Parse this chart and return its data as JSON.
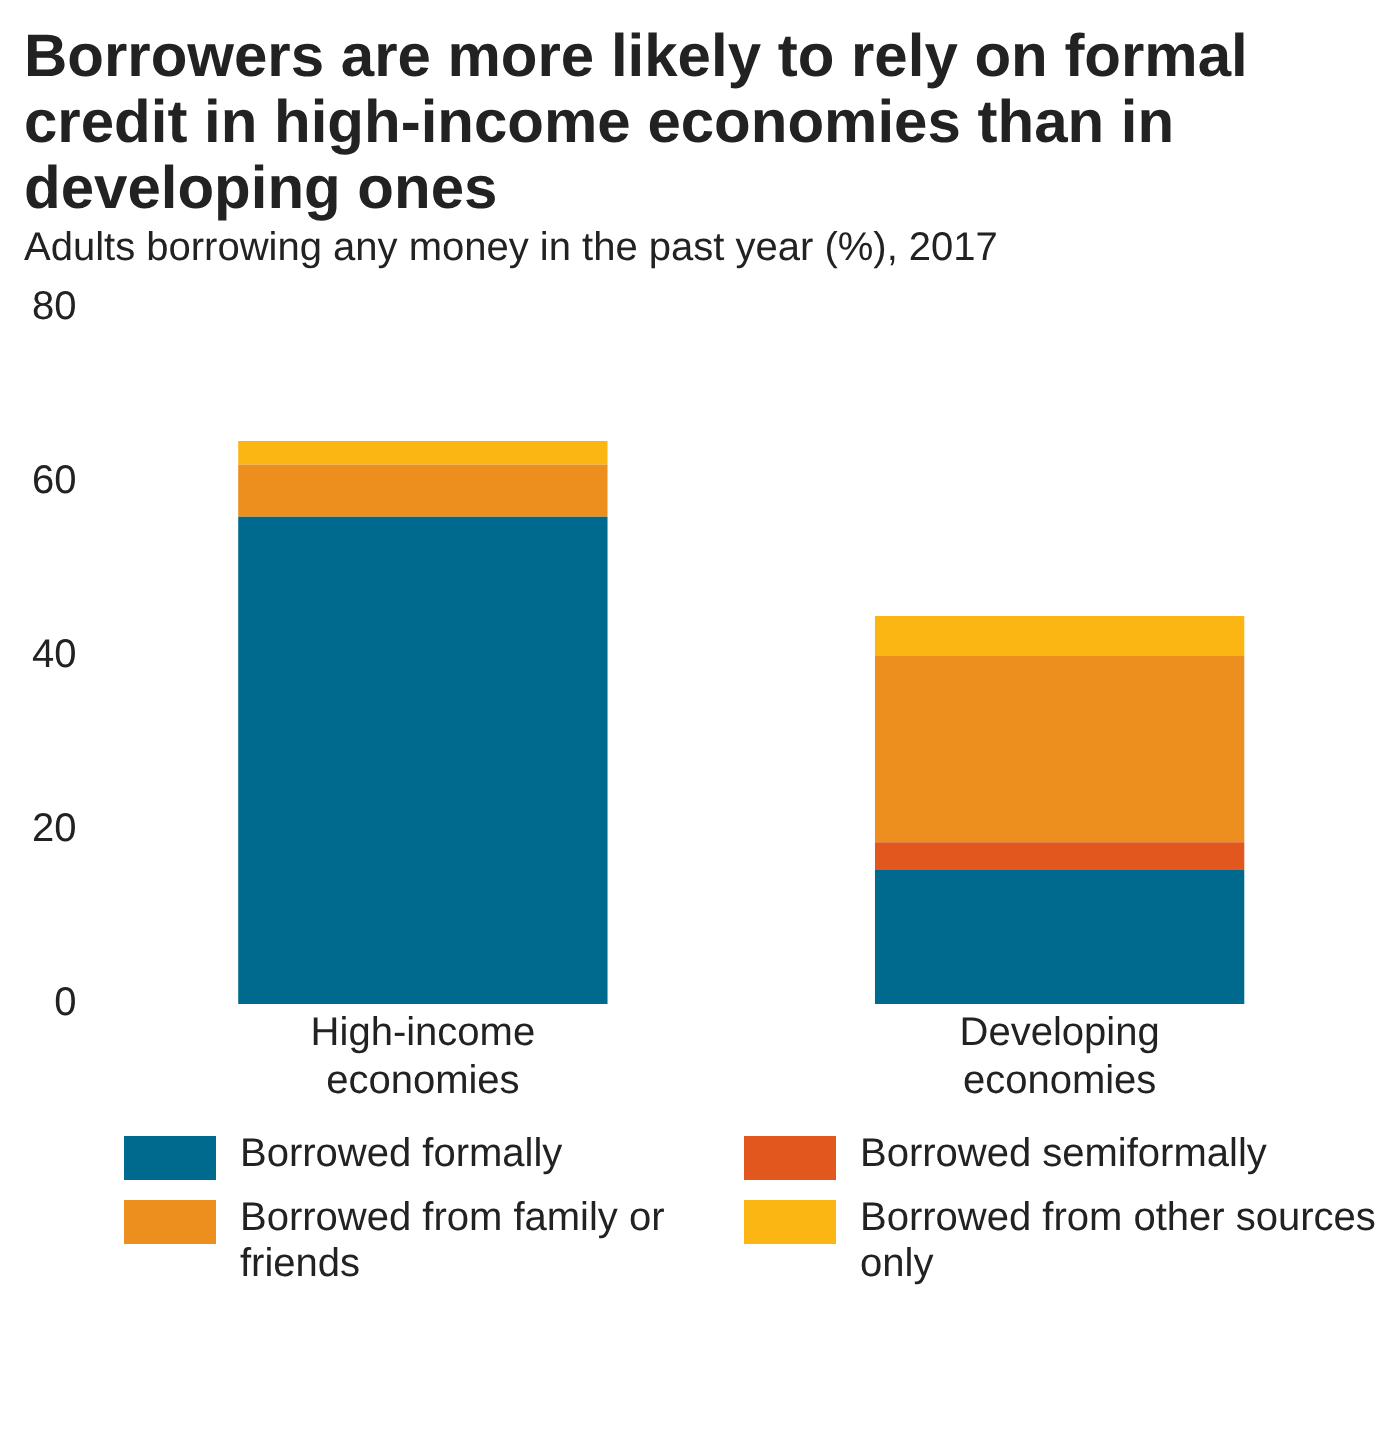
{
  "chart_data": {
    "type": "bar",
    "title": "Borrowers are more likely to rely on formal credit in high-income economies than in developing ones",
    "subtitle": "Adults borrowing any money in the past year (%), 2017",
    "categories": [
      "High-income economies",
      "Developing economies"
    ],
    "stacked": true,
    "series": [
      {
        "name": "Borrowed formally",
        "color": "#006a8e",
        "values": [
          56,
          15.4
        ]
      },
      {
        "name": "Borrowed semiformally",
        "color": "#e1571e",
        "values": [
          0,
          3.2
        ]
      },
      {
        "name": "Borrowed from family or friends",
        "color": "#ec8f1f",
        "values": [
          6,
          21.4
        ]
      },
      {
        "name": "Borrowed from other sources only",
        "color": "#fbb614",
        "values": [
          2.7,
          4.6
        ]
      }
    ],
    "ylim": [
      0,
      80
    ],
    "yticks": [
      0,
      20,
      40,
      60,
      80
    ],
    "grid": false,
    "legend": "bottom"
  }
}
